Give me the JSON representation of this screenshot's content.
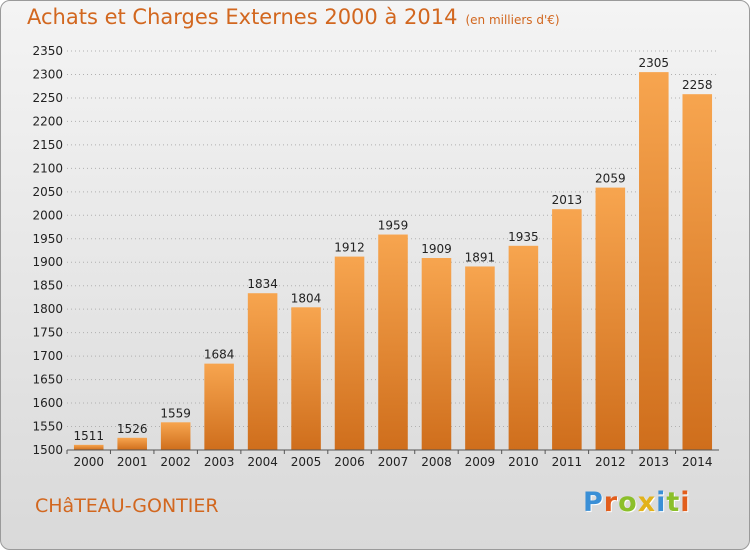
{
  "title": "Achats et Charges Externes 2000 à 2014",
  "subtitle": "(en milliers d'€)",
  "city": "CHâTEAU-GONTIER",
  "logo": {
    "letters": [
      {
        "char": "P",
        "color": "#3a8fd6"
      },
      {
        "char": "r",
        "color": "#e25d1b"
      },
      {
        "char": "o",
        "color": "#8bbf2a"
      },
      {
        "char": "x",
        "color": "#e2b21b"
      },
      {
        "char": "i",
        "color": "#3a8fd6"
      },
      {
        "char": "t",
        "color": "#8bbf2a"
      },
      {
        "char": "i",
        "color": "#e25d1b"
      }
    ]
  },
  "colors": {
    "accent": "#d2671f",
    "bar_light": "#f7a54f",
    "bar_dark": "#cf6e1c",
    "grid": "#b0b0b0"
  },
  "chart_data": {
    "type": "bar",
    "categories": [
      "2000",
      "2001",
      "2002",
      "2003",
      "2004",
      "2005",
      "2006",
      "2007",
      "2008",
      "2009",
      "2010",
      "2011",
      "2012",
      "2013",
      "2014"
    ],
    "values": [
      1511,
      1526,
      1559,
      1684,
      1834,
      1804,
      1912,
      1959,
      1909,
      1891,
      1935,
      2013,
      2059,
      2305,
      2258
    ],
    "ylim": [
      1500,
      2350
    ],
    "yticks": [
      1500,
      1550,
      1600,
      1650,
      1700,
      1750,
      1800,
      1850,
      1900,
      1950,
      2000,
      2050,
      2100,
      2150,
      2200,
      2250,
      2300,
      2350
    ],
    "grid": true,
    "legend": "none"
  }
}
